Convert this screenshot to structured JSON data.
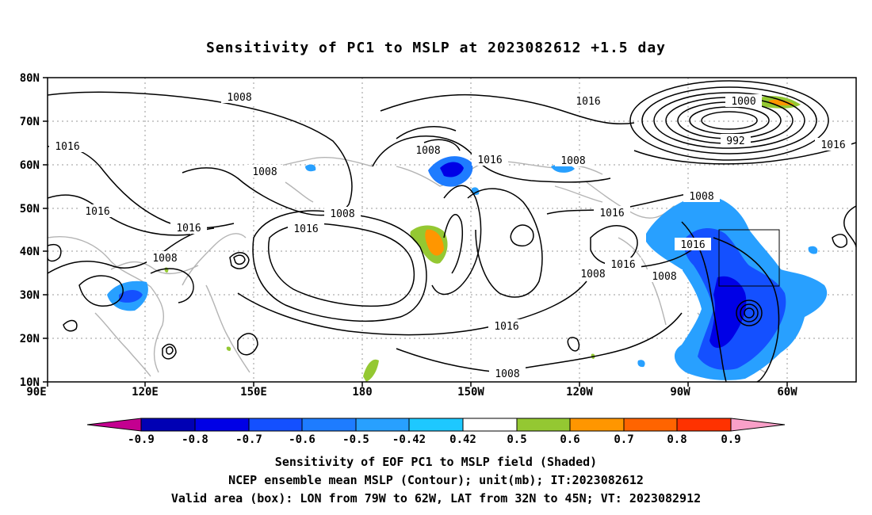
{
  "title": "Sensitivity of PC1 to MSLP at 2023082612 +1.5 day",
  "map": {
    "lat_labels": [
      "80N",
      "70N",
      "60N",
      "50N",
      "40N",
      "30N",
      "20N",
      "10N"
    ],
    "lon_labels": [
      "90E",
      "120E",
      "150E",
      "180",
      "150W",
      "120W",
      "90W",
      "60W"
    ],
    "contour_labels": [
      "1008",
      "1008",
      "1008",
      "1016",
      "1016",
      "1008",
      "1016",
      "1016",
      "1008",
      "1008",
      "1016",
      "1016",
      "1016",
      "1008",
      "1016",
      "1016",
      "1008",
      "1016",
      "1008",
      "1008",
      "1000",
      "992",
      "1016"
    ],
    "valid_box": {
      "lon_min": -79,
      "lon_max": -62,
      "lat_min": 32,
      "lat_max": 45
    }
  },
  "colorbar": {
    "labels": [
      "-0.9",
      "-0.8",
      "-0.7",
      "-0.6",
      "-0.5",
      "-0.42",
      "0.42",
      "0.5",
      "0.6",
      "0.7",
      "0.8",
      "0.9"
    ],
    "colors": [
      "#c40090",
      "#0000b4",
      "#0000e6",
      "#1450ff",
      "#1e7cff",
      "#28a0ff",
      "#1ec8ff",
      "#ffffff",
      "#94c832",
      "#ff9600",
      "#ff6400",
      "#ff3200",
      "#ff0000",
      "#f9a0c8"
    ]
  },
  "captions": {
    "line1": "Sensitivity of EOF PC1 to MSLP field (Shaded)",
    "line2": "NCEP ensemble mean MSLP (Contour); unit(mb); IT:2023082612",
    "line3": "Valid area (box): LON from 79W to 62W, LAT from 32N to 45N; VT: 2023082912"
  }
}
